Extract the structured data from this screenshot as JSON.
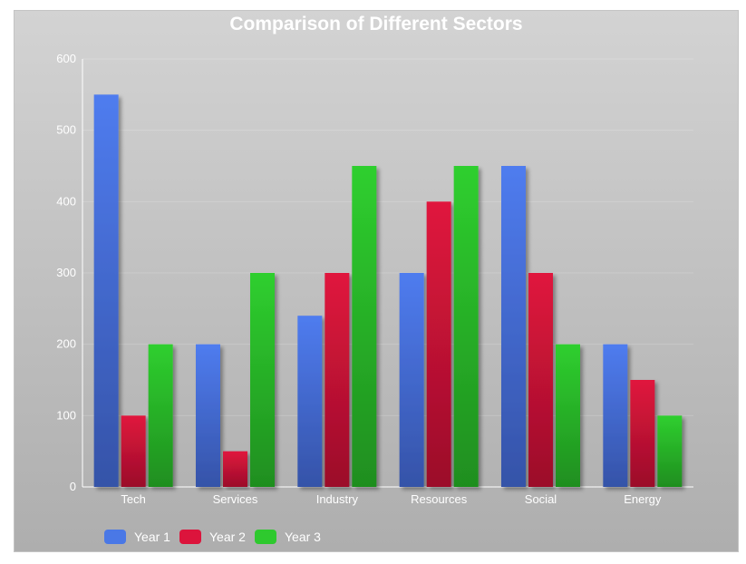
{
  "chart_data": {
    "type": "bar",
    "title": "Comparison of Different Sectors",
    "xlabel": "",
    "ylabel": "",
    "categories": [
      "Tech",
      "Services",
      "Industry",
      "Resources",
      "Social",
      "Energy"
    ],
    "series": [
      {
        "name": "Year 1",
        "values": [
          550,
          200,
          240,
          300,
          450,
          200
        ],
        "color": "#4a78e6"
      },
      {
        "name": "Year 2",
        "values": [
          100,
          50,
          300,
          400,
          300,
          150
        ],
        "color": "#dc143c"
      },
      {
        "name": "Year 3",
        "values": [
          200,
          300,
          450,
          450,
          200,
          100
        ],
        "color": "#2ec92e"
      }
    ],
    "ylim": [
      0,
      600
    ],
    "yticks": [
      0,
      100,
      200,
      300,
      400,
      500,
      600
    ],
    "grid": true,
    "legend_position": "bottom-left"
  }
}
